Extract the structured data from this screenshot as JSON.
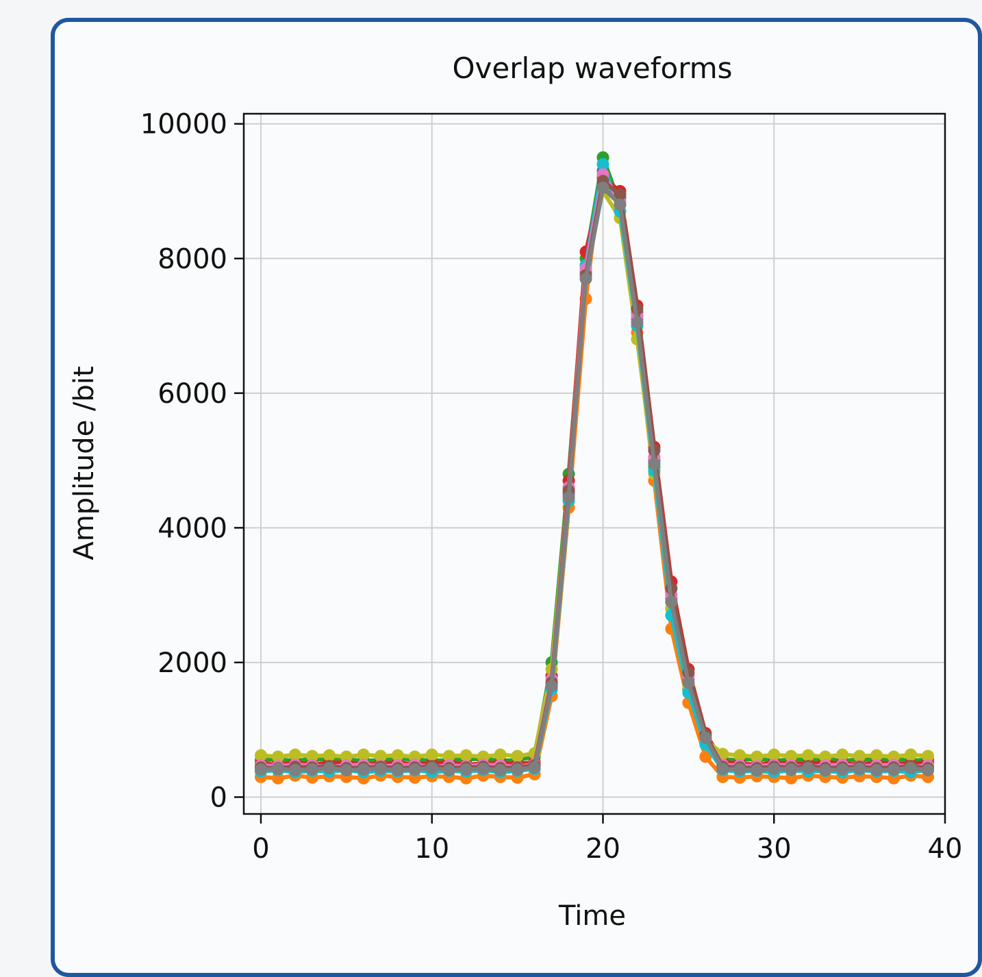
{
  "chart_data": {
    "type": "line",
    "title": "Overlap waveforms",
    "xlabel": "Time",
    "ylabel": "Amplitude /bit",
    "xlim": [
      -1,
      40
    ],
    "ylim": [
      -250,
      10150
    ],
    "xticks": [
      0,
      10,
      20,
      30,
      40
    ],
    "xtick_labels": [
      "0",
      "10",
      "20",
      "30",
      "40"
    ],
    "yticks": [
      0,
      2000,
      4000,
      6000,
      8000,
      10000
    ],
    "ytick_labels": [
      "0",
      "2000",
      "4000",
      "6000",
      "8000",
      "10000"
    ],
    "grid": true,
    "legend": "none",
    "x": [
      0,
      1,
      2,
      3,
      4,
      5,
      6,
      7,
      8,
      9,
      10,
      11,
      12,
      13,
      14,
      15,
      16,
      17,
      18,
      19,
      20,
      21,
      22,
      23,
      24,
      25,
      26,
      27,
      28,
      29,
      30,
      31,
      32,
      33,
      34,
      35,
      36,
      37,
      38,
      39
    ],
    "series": [
      {
        "color": "#1f77b4",
        "values": [
          450,
          420,
          460,
          440,
          430,
          450,
          470,
          440,
          420,
          450,
          430,
          460,
          450,
          440,
          430,
          450,
          480,
          1700,
          4500,
          7700,
          9300,
          8900,
          7200,
          5000,
          2900,
          1700,
          850,
          470,
          430,
          450,
          440,
          460,
          430,
          450,
          440,
          460,
          430,
          450,
          440,
          460
        ]
      },
      {
        "color": "#ff7f0e",
        "values": [
          300,
          280,
          320,
          290,
          310,
          300,
          280,
          320,
          300,
          290,
          310,
          300,
          280,
          320,
          300,
          290,
          340,
          1500,
          4300,
          7400,
          9500,
          8700,
          6900,
          4700,
          2500,
          1400,
          600,
          300,
          290,
          310,
          300,
          280,
          320,
          300,
          290,
          310,
          300,
          280,
          320,
          300
        ]
      },
      {
        "color": "#2ca02c",
        "values": [
          550,
          560,
          540,
          570,
          550,
          560,
          540,
          550,
          570,
          560,
          540,
          550,
          560,
          570,
          540,
          550,
          600,
          2000,
          4800,
          8000,
          9500,
          8800,
          7000,
          4900,
          2800,
          1600,
          800,
          560,
          550,
          570,
          540,
          560,
          550,
          570,
          540,
          560,
          550,
          570,
          540,
          560
        ]
      },
      {
        "color": "#d62728",
        "values": [
          500,
          480,
          510,
          490,
          500,
          520,
          480,
          500,
          510,
          490,
          500,
          520,
          480,
          500,
          510,
          490,
          520,
          1800,
          4700,
          8100,
          9200,
          9000,
          7300,
          5200,
          3200,
          1900,
          950,
          520,
          500,
          480,
          510,
          500,
          490,
          520,
          500,
          480,
          510,
          500,
          490,
          520
        ]
      },
      {
        "color": "#9467bd",
        "values": [
          420,
          440,
          410,
          430,
          420,
          440,
          410,
          430,
          420,
          440,
          410,
          430,
          420,
          440,
          410,
          430,
          460,
          1650,
          4500,
          7800,
          9100,
          8800,
          7100,
          5000,
          2950,
          1750,
          870,
          440,
          420,
          430,
          410,
          440,
          420,
          430,
          410,
          440,
          420,
          430,
          410,
          440
        ]
      },
      {
        "color": "#bcbd22",
        "values": [
          620,
          600,
          630,
          610,
          620,
          600,
          630,
          610,
          620,
          600,
          630,
          610,
          620,
          600,
          630,
          610,
          650,
          1900,
          4600,
          7900,
          9000,
          8600,
          6800,
          4800,
          2800,
          1650,
          850,
          640,
          620,
          600,
          630,
          610,
          620,
          600,
          630,
          610,
          620,
          600,
          630,
          610
        ]
      },
      {
        "color": "#17becf",
        "values": [
          380,
          400,
          370,
          390,
          380,
          400,
          370,
          390,
          380,
          400,
          370,
          390,
          380,
          400,
          370,
          390,
          420,
          1600,
          4400,
          7900,
          9400,
          8700,
          7000,
          4850,
          2700,
          1550,
          780,
          400,
          380,
          390,
          370,
          400,
          380,
          390,
          370,
          400,
          380,
          390,
          370,
          400
        ]
      },
      {
        "color": "#e377c2",
        "values": [
          470,
          460,
          480,
          470,
          450,
          470,
          480,
          460,
          470,
          480,
          450,
          470,
          460,
          480,
          470,
          450,
          490,
          1750,
          4600,
          7850,
          9250,
          8850,
          7150,
          5050,
          3000,
          1800,
          900,
          480,
          470,
          460,
          480,
          470,
          450,
          470,
          480,
          460,
          470,
          480,
          450,
          470
        ]
      },
      {
        "color": "#8c564b",
        "values": [
          440,
          430,
          450,
          440,
          460,
          430,
          440,
          450,
          430,
          440,
          460,
          430,
          440,
          450,
          430,
          440,
          470,
          1700,
          4550,
          7750,
          9150,
          8950,
          7250,
          5150,
          3100,
          1850,
          920,
          450,
          440,
          430,
          450,
          440,
          460,
          430,
          440,
          450,
          430,
          440,
          460,
          430
        ]
      },
      {
        "color": "#7f7f7f",
        "values": [
          410,
          420,
          400,
          410,
          430,
          400,
          410,
          420,
          400,
          410,
          430,
          400,
          410,
          420,
          400,
          410,
          440,
          1650,
          4450,
          7700,
          9050,
          8800,
          7050,
          4950,
          2900,
          1700,
          880,
          420,
          410,
          400,
          420,
          410,
          430,
          400,
          410,
          420,
          400,
          410,
          430,
          400
        ]
      }
    ]
  }
}
